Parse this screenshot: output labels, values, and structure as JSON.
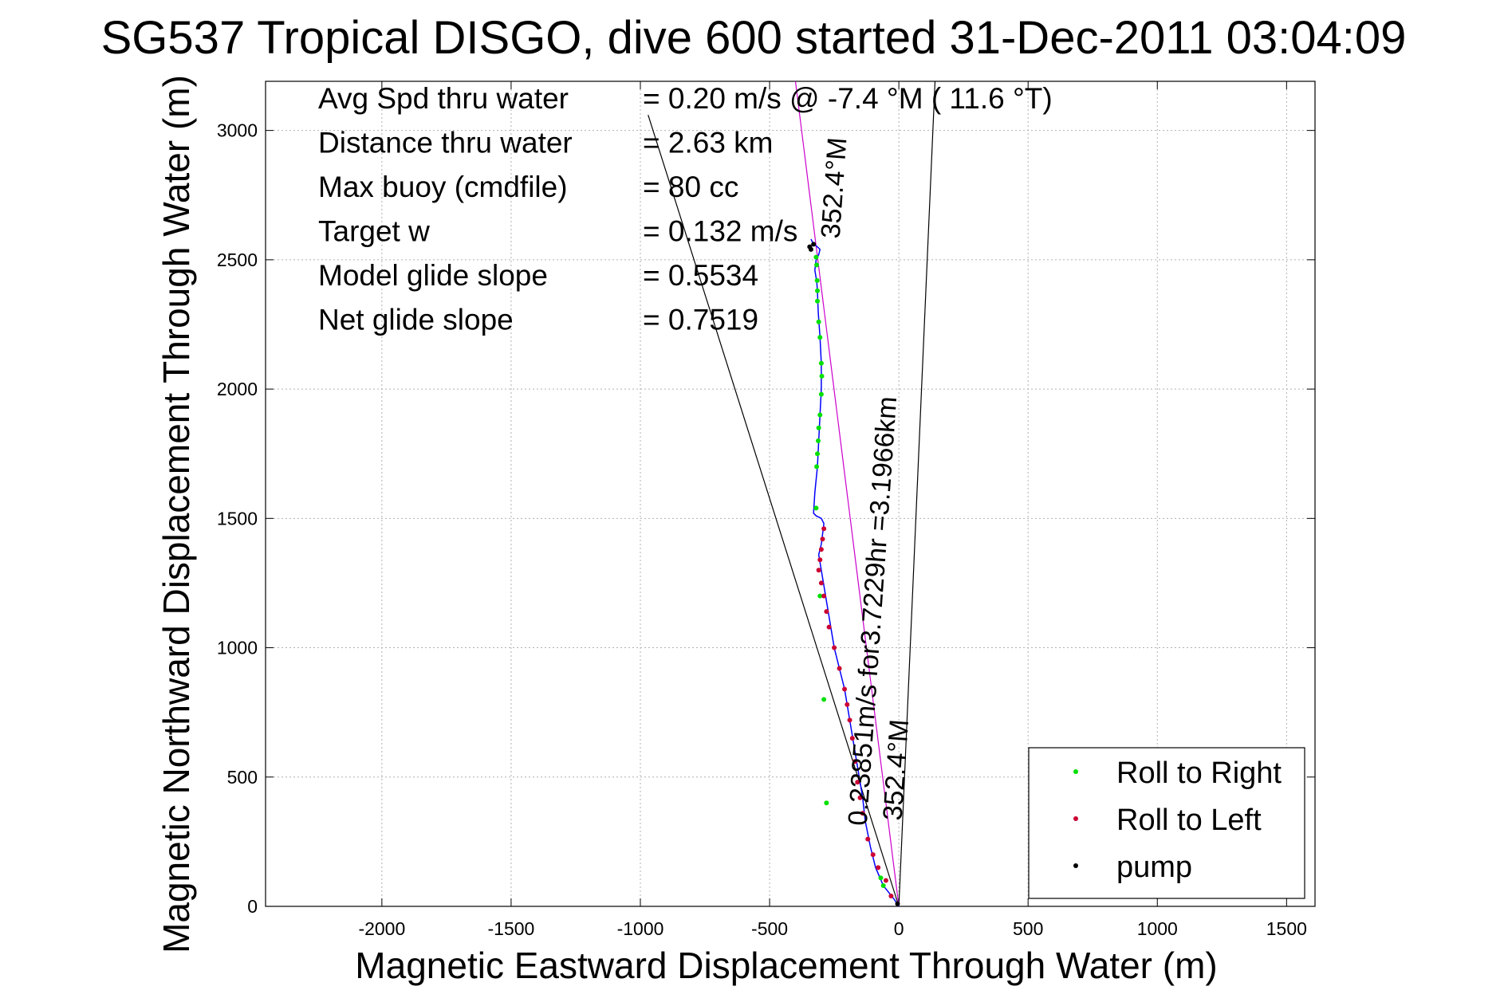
{
  "chart_data": {
    "type": "line",
    "title": "SG537 Tropical DISGO, dive 600 started 31-Dec-2011 03:04:09",
    "xlabel": "Magnetic Eastward Displacement Through Water (m)",
    "ylabel": "Magnetic Northward Displacement Through Water (m)",
    "xlim": [
      -2450,
      1610
    ],
    "ylim": [
      0,
      3190
    ],
    "xticks": [
      -2000,
      -1500,
      -1000,
      -500,
      0,
      500,
      1000,
      1500
    ],
    "yticks": [
      0,
      500,
      1000,
      1500,
      2000,
      2500,
      3000
    ],
    "grid": true,
    "legend_position": "bottom-right",
    "info_lines": [
      {
        "label": "Avg Spd thru water",
        "value": "=  0.20 m/s @  -7.4 °M ( 11.6 °T)"
      },
      {
        "label": "Distance thru water",
        "value": "=  2.63 km"
      },
      {
        "label": "Max buoy (cmdfile)",
        "value": "= 80 cc"
      },
      {
        "label": "Target w",
        "value": "= 0.132 m/s"
      },
      {
        "label": "Model glide slope",
        "value": "= 0.5534"
      },
      {
        "label": "Net glide slope",
        "value": "= 0.7519"
      }
    ],
    "annotations": [
      {
        "text": "352.4°M",
        "x": -230,
        "y": 2580
      },
      {
        "text": "0.23851m/s for3.7229hr =3.1966km",
        "x": -125,
        "y": 310
      },
      {
        "text": "352.4°M",
        "x": 10,
        "y": 330
      }
    ],
    "series": [
      {
        "name": "Roll to Right",
        "color": "#00e000",
        "marker": "dot",
        "x": [
          -320,
          -318,
          -316,
          -315,
          -315,
          -310,
          -305,
          -300,
          -298,
          -300,
          -305,
          -310,
          -312,
          -315,
          -318,
          -320,
          -305,
          -290,
          -280,
          -70,
          -60
        ],
        "y": [
          2510,
          2480,
          2420,
          2380,
          2340,
          2260,
          2200,
          2100,
          2050,
          1980,
          1900,
          1850,
          1800,
          1750,
          1700,
          1540,
          1200,
          800,
          400,
          110,
          80
        ]
      },
      {
        "name": "Roll to Left",
        "color": "#cc0033",
        "marker": "dot",
        "x": [
          -290,
          -295,
          -300,
          -305,
          -310,
          -300,
          -290,
          -280,
          -270,
          -250,
          -230,
          -210,
          -200,
          -190,
          -180,
          -170,
          -160,
          -150,
          -140,
          -120,
          -100,
          -80,
          -50,
          -30
        ],
        "y": [
          1460,
          1420,
          1380,
          1340,
          1300,
          1250,
          1200,
          1140,
          1080,
          1000,
          920,
          840,
          780,
          720,
          650,
          560,
          480,
          420,
          360,
          260,
          200,
          150,
          100,
          40
        ]
      },
      {
        "name": "pump",
        "color": "#000000",
        "marker": "dot",
        "x": [
          -345,
          -340,
          -330,
          -5
        ],
        "y": [
          2550,
          2540,
          2560,
          10
        ]
      }
    ],
    "track": {
      "color": "#0000ff",
      "x": [
        0,
        -20,
        -60,
        -90,
        -110,
        -130,
        -140,
        -150,
        -160,
        -170,
        -180,
        -190,
        -200,
        -210,
        -230,
        -250,
        -260,
        -270,
        -280,
        -290,
        -300,
        -310,
        -300,
        -295,
        -290,
        -300,
        -320,
        -330,
        -325,
        -315,
        -310,
        -305,
        -300,
        -300,
        -305,
        -312,
        -315,
        -318,
        -320,
        -325,
        -320,
        -310,
        -305,
        -315,
        -330,
        -340
      ],
      "y": [
        0,
        30,
        80,
        150,
        230,
        330,
        420,
        480,
        540,
        600,
        660,
        720,
        780,
        840,
        920,
        1000,
        1060,
        1120,
        1180,
        1240,
        1300,
        1360,
        1400,
        1440,
        1480,
        1500,
        1510,
        1520,
        1600,
        1700,
        1800,
        1900,
        2000,
        2100,
        2200,
        2300,
        2380,
        2420,
        2430,
        2460,
        2500,
        2520,
        2540,
        2550,
        2560,
        2580
      ]
    },
    "guide_lines": [
      {
        "color": "#000000",
        "x": [
          0,
          -970
        ],
        "y": [
          0,
          3060
        ]
      },
      {
        "color": "#000000",
        "x": [
          0,
          140
        ],
        "y": [
          0,
          3190
        ]
      },
      {
        "color": "#cc00cc",
        "x": [
          0,
          -400
        ],
        "y": [
          0,
          3190
        ]
      }
    ],
    "legend": [
      {
        "label": "Roll to Right",
        "color": "#00e000"
      },
      {
        "label": "Roll to Left",
        "color": "#cc0033"
      },
      {
        "label": "pump",
        "color": "#000000"
      }
    ]
  }
}
